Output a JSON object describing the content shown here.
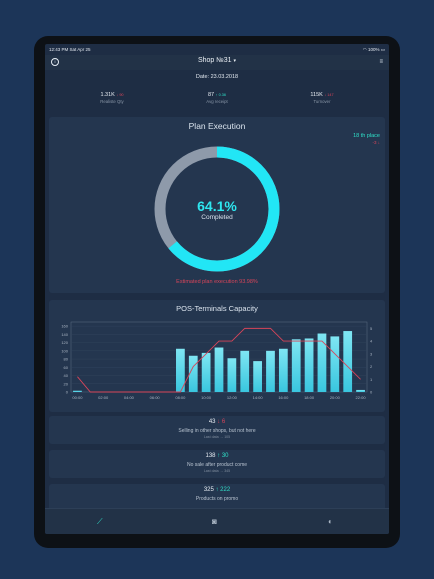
{
  "status_bar": {
    "time_date": "12:43 PM  Sat Apr 25",
    "battery": "100%"
  },
  "nav": {
    "title": "Shop №31",
    "dropdown_icon": "caret-down-icon",
    "info_icon": "info-icon",
    "menu_icon": "stack-icon"
  },
  "date": "Date: 23.03.2018",
  "kpis": [
    {
      "value": "1.31K",
      "delta": "↓ 90",
      "label": "Realiste Qty",
      "delta_color": "#d8455a"
    },
    {
      "value": "87",
      "delta": "↑ 0.36",
      "label": "Avg receipt",
      "delta_color": "#2fe0c8"
    },
    {
      "value": "115K",
      "delta": "↓ 147",
      "label": "Turnover",
      "delta_color": "#d8455a"
    }
  ],
  "plan_execution": {
    "title": "Plan Execution",
    "place": "18 th place",
    "place_delta": "-3 ↓",
    "percent_label": "64.1%",
    "percent_value": 64.1,
    "completed_label": "Completed",
    "estimate": "Estimated plan execution 93.98%",
    "ring_color": "#22e6f5",
    "ring_bg": "#8e9aaa"
  },
  "pos": {
    "title": "POS-Terminals Capacity",
    "chart_data": {
      "type": "bar",
      "title": "POS-Terminals Capacity",
      "categories": [
        "00:00",
        "01:00",
        "02:00",
        "03:00",
        "04:00",
        "05:00",
        "06:00",
        "07:00",
        "08:00",
        "09:00",
        "10:00",
        "11:00",
        "12:00",
        "13:00",
        "14:00",
        "15:00",
        "16:00",
        "17:00",
        "18:00",
        "19:00",
        "20:00",
        "21:00",
        "22:00"
      ],
      "x_tick_labels": [
        "00:00",
        "02:00",
        "04:00",
        "06:00",
        "08:00",
        "10:00",
        "12:00",
        "14:00",
        "16:00",
        "18:00",
        "20:00",
        "22:00"
      ],
      "ylim": [
        0,
        170
      ],
      "y_ticks": [
        0,
        20,
        40,
        60,
        80,
        100,
        120,
        140,
        160
      ],
      "y2lim": [
        0,
        5.5
      ],
      "y2_ticks": [
        0,
        1,
        2,
        3,
        4,
        5
      ],
      "series": [
        {
          "type": "bar",
          "values": [
            3,
            0,
            0,
            0,
            0,
            0,
            0,
            0,
            105,
            88,
            95,
            108,
            82,
            100,
            75,
            100,
            105,
            128,
            130,
            142,
            135,
            148,
            5
          ]
        },
        {
          "type": "line",
          "axis": "right",
          "values": [
            1.2,
            0,
            0,
            0,
            0,
            0,
            0,
            0,
            0,
            2,
            3,
            4,
            4,
            5,
            5,
            5,
            4,
            4,
            4,
            4,
            3,
            2,
            1
          ]
        }
      ],
      "bar_color": "#39c6df",
      "line_color": "#d8455a"
    }
  },
  "stats": [
    {
      "value": "43",
      "delta": "↓ 6",
      "delta_color": "#d8455a",
      "label": "Selling in other shops, but not here",
      "sub": "Last data → 105"
    },
    {
      "value": "138",
      "delta": "↑ 30",
      "delta_color": "#2fe0c8",
      "label": "No sale after product come",
      "sub": "Last data → 345"
    },
    {
      "value": "325",
      "delta": "↑ 222",
      "delta_color": "#2fe0c8",
      "label": "Products on promo",
      "sub": ""
    }
  ],
  "tabbar": {
    "items": [
      "chart-line-icon",
      "camera-icon",
      "contrast-icon"
    ],
    "active": 0
  }
}
